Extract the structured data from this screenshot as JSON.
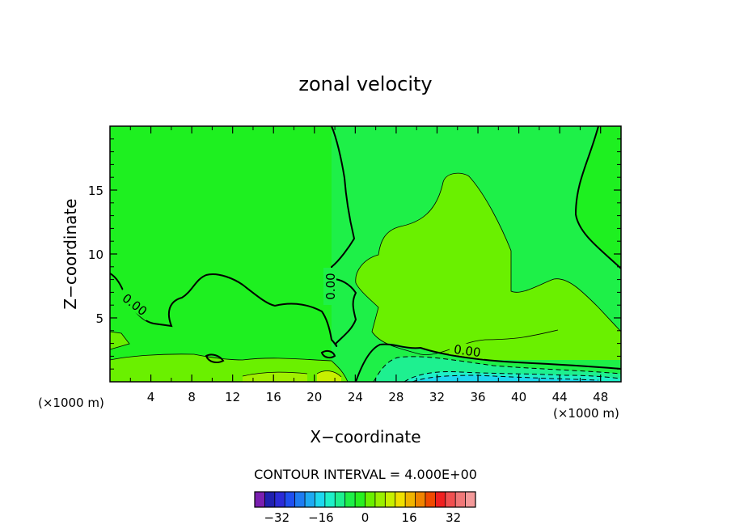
{
  "chart_data": {
    "type": "heatmap",
    "title": "zonal velocity",
    "xlabel": "X−coordinate",
    "ylabel": "Z−coordinate",
    "x_unit_left": "(×1000 m)",
    "x_unit_right": "(×1000 m)",
    "xlim": [
      0,
      50
    ],
    "ylim": [
      0,
      20
    ],
    "x_ticks": [
      4,
      8,
      12,
      16,
      20,
      24,
      28,
      32,
      36,
      40,
      44,
      48
    ],
    "y_ticks": [
      5,
      10,
      15
    ],
    "contour_interval_label": "CONTOUR INTERVAL = 4.000E+00",
    "contour_interval": 4,
    "zero_contour_label": "0.00",
    "colorbar": {
      "ticks": [
        -32,
        -16,
        0,
        16,
        32
      ],
      "levels": [
        -36,
        -32,
        -28,
        -24,
        -20,
        -16,
        -12,
        -8,
        -4,
        0,
        4,
        8,
        12,
        16,
        20,
        24,
        28,
        32,
        36
      ],
      "colors": [
        "#7a1fb0",
        "#2020b0",
        "#2b2bd8",
        "#1f4ff0",
        "#1e7cf2",
        "#1eaaf2",
        "#1ed8ef",
        "#1ef0c8",
        "#1ef090",
        "#1ef048",
        "#28f020",
        "#6af000",
        "#9af000",
        "#c8f000",
        "#f0e000",
        "#f0b400",
        "#f08400",
        "#f04a00",
        "#f02020",
        "#f05050",
        "#f07878",
        "#f49a9a"
      ]
    },
    "regions": [
      {
        "level": "0 to 4",
        "color": "#1ef020"
      },
      {
        "level": "4 to 8",
        "color": "#6af000"
      },
      {
        "level": "8 to 12",
        "color": "#a0f000"
      },
      {
        "level": "-4 to 0",
        "color": "#1ef048"
      },
      {
        "level": "-8 to -4",
        "color": "#1ef090"
      },
      {
        "level": "-12 to -8",
        "color": "#1ef0c8"
      },
      {
        "level": "-16 to -12",
        "color": "#1ed8ef"
      }
    ]
  }
}
